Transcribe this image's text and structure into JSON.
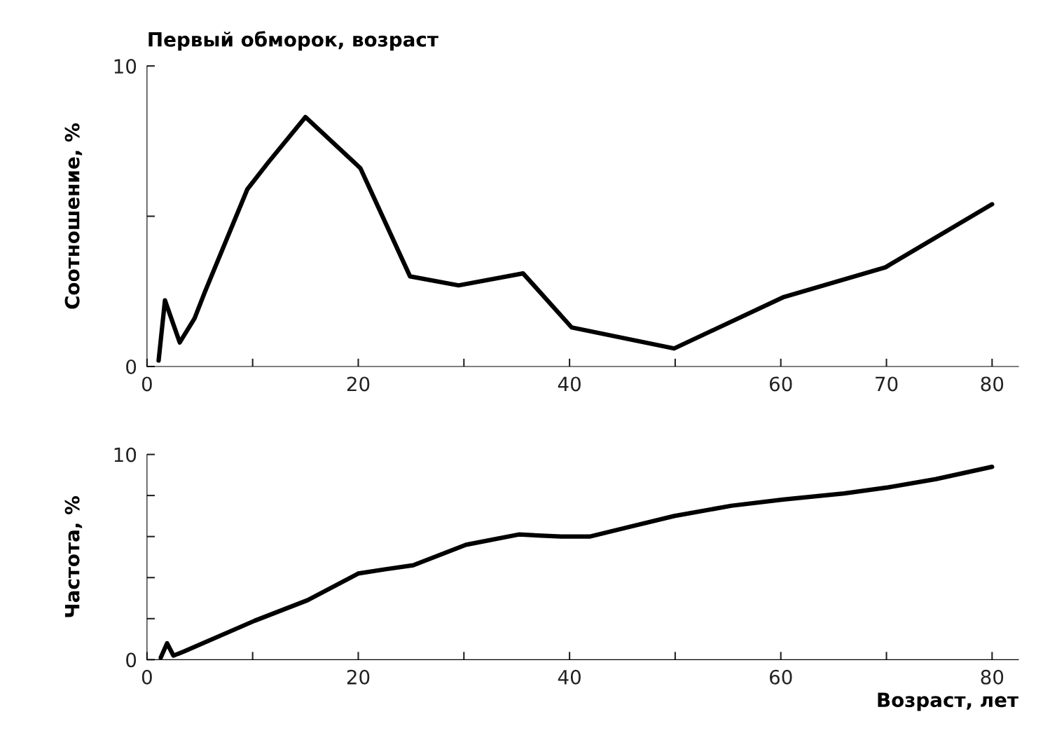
{
  "chart_data": [
    {
      "type": "line",
      "title": "Первый обморок, возраст",
      "ylabel": "Соотношение, %",
      "xlim": [
        0,
        82.5
      ],
      "ylim": [
        0,
        10
      ],
      "xticks": [
        0,
        {
          "value": 10,
          "label": null
        },
        20,
        {
          "value": 30,
          "label": null
        },
        40,
        {
          "value": 50,
          "label": null
        },
        60,
        70,
        80
      ],
      "yticks": [
        0,
        {
          "value": 5,
          "label": null
        },
        10
      ],
      "grid": false,
      "legend": false,
      "series": [
        {
          "color": "#000000",
          "x": [
            1.1,
            1.7,
            3.1,
            4.5,
            5.5,
            9.5,
            11.5,
            15,
            20.2,
            24.9,
            29.5,
            35.6,
            40.2,
            49.9,
            60.2,
            69.9,
            80
          ],
          "values": [
            0.2,
            2.2,
            0.8,
            1.6,
            2.5,
            5.9,
            6.8,
            8.3,
            6.6,
            3.0,
            2.7,
            3.1,
            1.3,
            0.6,
            2.3,
            3.3,
            5.4
          ]
        }
      ]
    },
    {
      "type": "line",
      "ylabel": "Частота, %",
      "xlabel": "Возраст, лет",
      "xlim": [
        0,
        82.5
      ],
      "ylim": [
        0,
        10
      ],
      "xticks": [
        0,
        {
          "value": 10,
          "label": null
        },
        20,
        {
          "value": 30,
          "label": null
        },
        40,
        {
          "value": 50,
          "label": null
        },
        60,
        {
          "value": 70,
          "label": null
        },
        80
      ],
      "yticks": [
        0,
        {
          "value": 2,
          "label": null
        },
        {
          "value": 4,
          "label": null
        },
        {
          "value": 6,
          "label": null
        },
        {
          "value": 8,
          "label": null
        },
        10
      ],
      "grid": false,
      "legend": false,
      "series": [
        {
          "color": "#000000",
          "x": [
            1.3,
            1.9,
            2.5,
            3.5,
            10.2,
            15.2,
            20,
            22.5,
            25.2,
            30.2,
            35.2,
            39.2,
            41.9,
            45.9,
            49.9,
            55.3,
            60.2,
            66,
            70.2,
            74.7,
            80
          ],
          "values": [
            0.1,
            0.8,
            0.2,
            0.4,
            1.9,
            2.9,
            4.2,
            4.4,
            4.6,
            5.6,
            6.1,
            6.0,
            6.0,
            6.5,
            7.0,
            7.5,
            7.8,
            8.1,
            8.4,
            8.8,
            9.4
          ]
        }
      ]
    }
  ]
}
